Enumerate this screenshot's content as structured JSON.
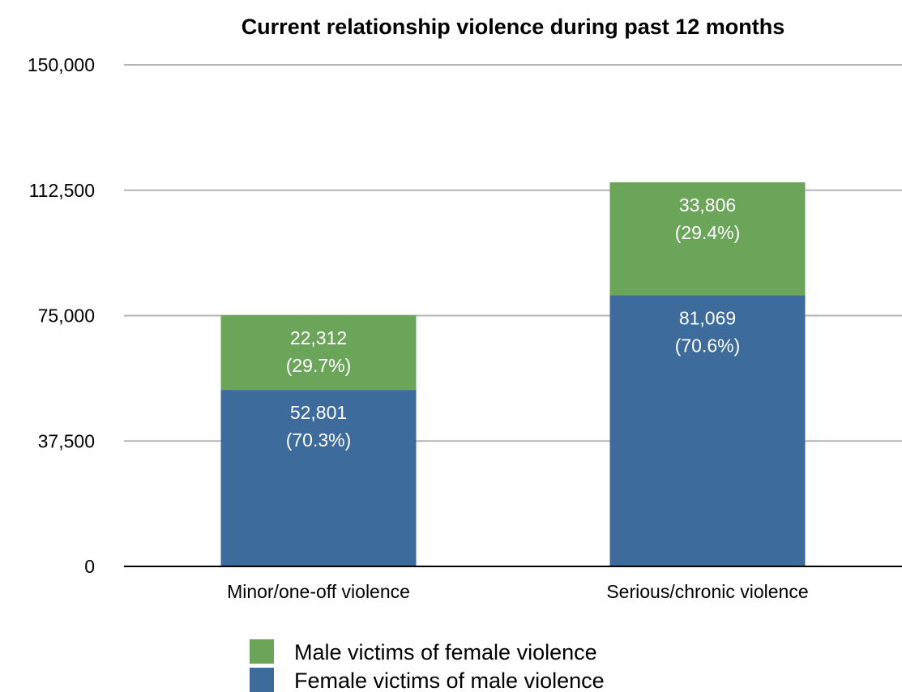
{
  "chart_data": {
    "type": "bar",
    "stacked": true,
    "title": "Current relationship violence during past 12 months",
    "categories": [
      "Minor/one-off violence",
      "Serious/chronic violence"
    ],
    "series": [
      {
        "name": "Female victims of male violence",
        "color": "#3d6b9c",
        "values": [
          52801,
          81069
        ],
        "labels": [
          [
            "52,801",
            "(70.3%)"
          ],
          [
            "81,069",
            "(70.6%)"
          ]
        ]
      },
      {
        "name": "Male victims of female violence",
        "color": "#6aa55a",
        "values": [
          22312,
          33806
        ],
        "labels": [
          [
            "22,312",
            "(29.7%)"
          ],
          [
            "33,806",
            "(29.4%)"
          ]
        ]
      }
    ],
    "yticks": [
      0,
      37500,
      75000,
      112500,
      150000
    ],
    "ytick_labels": [
      "0",
      "37,500",
      "75,000",
      "112,500",
      "150,000"
    ],
    "ylim": [
      0,
      150000
    ],
    "grid": true,
    "legend_position": "bottom",
    "legend_order": [
      "Male victims of female violence",
      "Female victims of male violence"
    ]
  }
}
